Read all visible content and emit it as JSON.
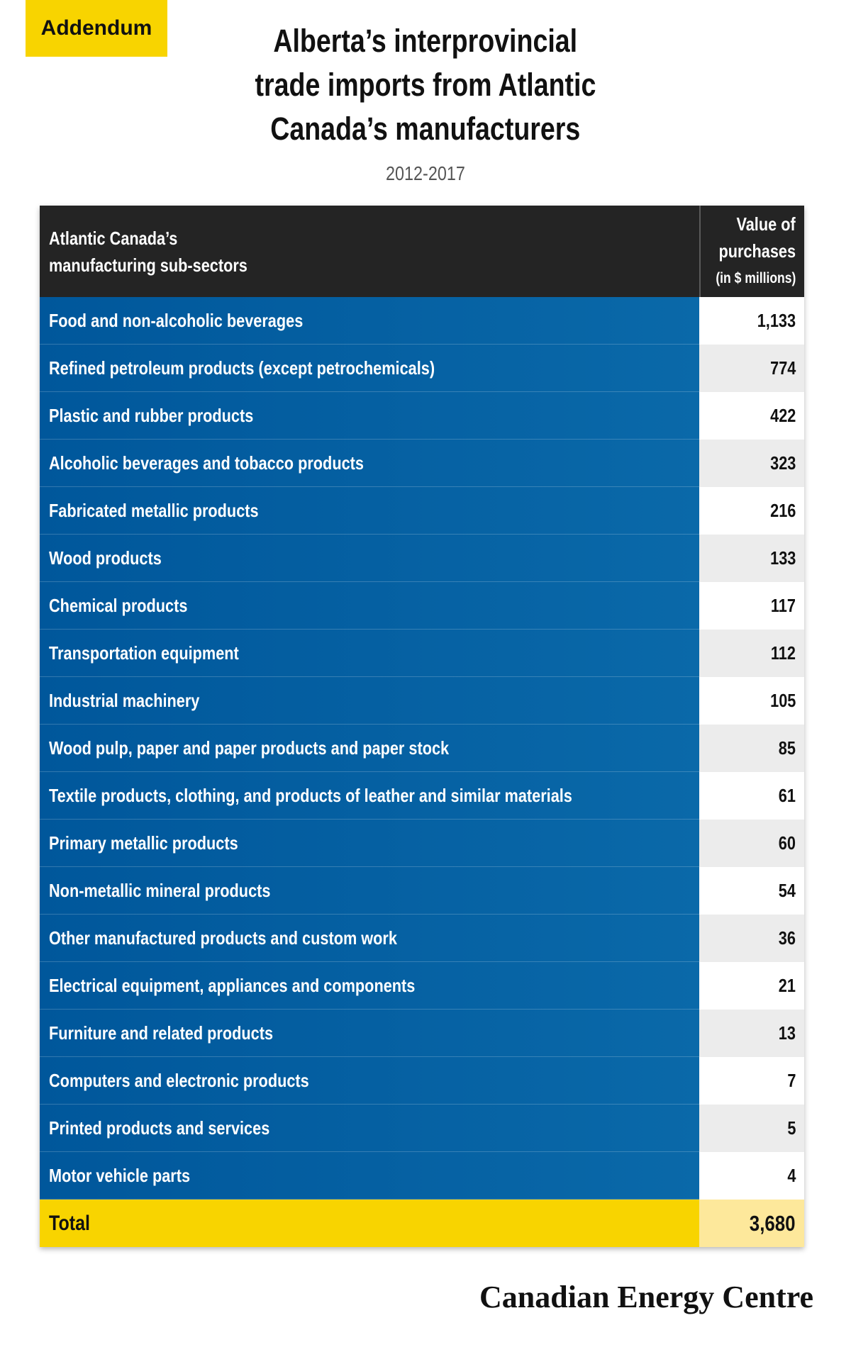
{
  "badge": {
    "label": "Addendum"
  },
  "chart_data": {
    "type": "table",
    "title_lines": [
      "Alberta’s interprovincial",
      "trade imports from Atlantic",
      "Canada’s manufacturers"
    ],
    "subtitle": "2012-2017",
    "columns": [
      {
        "lines": [
          "Atlantic Canada’s",
          "manufacturing sub-sectors"
        ]
      },
      {
        "lines": [
          "Value of",
          "purchases"
        ],
        "unit": "(in $ millions)"
      }
    ],
    "rows": [
      {
        "label": "Food and non-alcoholic beverages",
        "value": "1,133"
      },
      {
        "label": "Refined petroleum products (except petrochemicals)",
        "value": "774"
      },
      {
        "label": "Plastic and rubber products",
        "value": "422"
      },
      {
        "label": "Alcoholic beverages and tobacco products",
        "value": "323"
      },
      {
        "label": "Fabricated metallic products",
        "value": "216"
      },
      {
        "label": "Wood products",
        "value": "133"
      },
      {
        "label": "Chemical products",
        "value": "117"
      },
      {
        "label": "Transportation equipment",
        "value": "112"
      },
      {
        "label": "Industrial machinery",
        "value": "105"
      },
      {
        "label": "Wood pulp, paper and paper products and paper stock",
        "value": "85"
      },
      {
        "label": "Textile products, clothing, and products of leather and similar materials",
        "value": "61"
      },
      {
        "label": "Primary metallic products",
        "value": "60"
      },
      {
        "label": "Non-metallic mineral products",
        "value": "54"
      },
      {
        "label": "Other manufactured products and custom work",
        "value": "36"
      },
      {
        "label": "Electrical equipment, appliances and components",
        "value": "21"
      },
      {
        "label": "Furniture and related products",
        "value": "13"
      },
      {
        "label": "Computers and electronic products",
        "value": "7"
      },
      {
        "label": "Printed products and services",
        "value": "5"
      },
      {
        "label": "Motor vehicle parts",
        "value": "4"
      }
    ],
    "total": {
      "label": "Total",
      "value": "3,680"
    }
  },
  "footer": {
    "logo_text": "Canadian Energy Centre"
  },
  "colors": {
    "accent_yellow": "#f8d400",
    "total_value_yellow": "#fde89b",
    "row_blue": "#00579b",
    "row_blue_light": "#0a69a9",
    "header_dark": "#242424",
    "row_alt_gray": "#ececec"
  }
}
